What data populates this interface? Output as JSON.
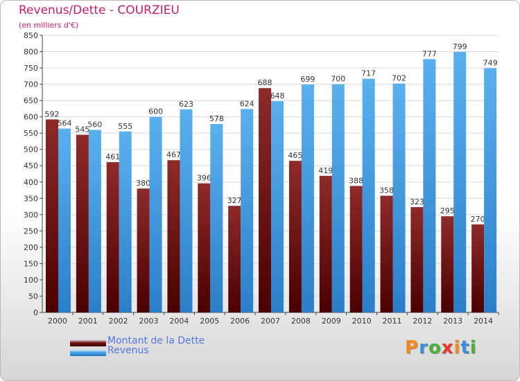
{
  "header": {
    "title": "Revenus/Dette - COURZIEU",
    "subtitle": "(en milliers d'€)"
  },
  "chart_data": {
    "type": "bar",
    "categories": [
      "2000",
      "2001",
      "2002",
      "2003",
      "2004",
      "2005",
      "2006",
      "2007",
      "2008",
      "2009",
      "2010",
      "2011",
      "2012",
      "2013",
      "2014"
    ],
    "series": [
      {
        "name": "Montant de la Dette",
        "color": "#7a1616",
        "values": [
          592,
          545,
          461,
          380,
          467,
          396,
          327,
          688,
          465,
          419,
          388,
          358,
          323,
          295,
          270
        ]
      },
      {
        "name": "Revenus",
        "color": "#4aa3e6",
        "values": [
          564,
          560,
          555,
          600,
          623,
          578,
          624,
          648,
          699,
          700,
          717,
          702,
          777,
          799,
          749
        ]
      }
    ],
    "ylim": [
      0,
      850
    ],
    "ytick_step": 50,
    "grid": true,
    "legend_position": "bottom-left"
  },
  "legend": {
    "items": [
      {
        "label": "Montant de la Dette",
        "color": "#7a1616"
      },
      {
        "label": "Revenus",
        "color": "#4aa3e6"
      }
    ]
  },
  "logo": {
    "text": "Proxiti",
    "letters": [
      "P",
      "r",
      "o",
      "x",
      "i",
      "t",
      "i"
    ],
    "colors": [
      "#f08a1c",
      "#3a8fd8",
      "#4cae3c",
      "#e4392a",
      "#f08a1c",
      "#3a8fd8",
      "#4cae3c"
    ]
  }
}
